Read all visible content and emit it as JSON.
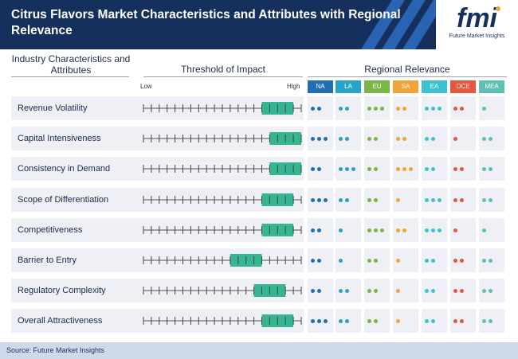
{
  "title": "Citrus Flavors Market Characteristics and Attributes with Regional Relevance",
  "logo": {
    "wordmark": "fmi",
    "tagline": "Future Market Insights"
  },
  "headers": {
    "characteristics": "Industry Characteristics and Attributes",
    "threshold": "Threshold of Impact",
    "regional": "Regional Relevance",
    "low": "Low",
    "high": "High"
  },
  "regions": [
    {
      "code": "NA",
      "color": "#1f6fb2"
    },
    {
      "code": "LA",
      "color": "#28a3c8"
    },
    {
      "code": "EU",
      "color": "#7ab648"
    },
    {
      "code": "SA",
      "color": "#f3a33b"
    },
    {
      "code": "EA",
      "color": "#3cc2d1"
    },
    {
      "code": "OCE",
      "color": "#e8553e"
    },
    {
      "code": "MEA",
      "color": "#5fc0b2"
    }
  ],
  "chart_data": {
    "type": "table",
    "threshold_scale": {
      "min": 0,
      "max": 20,
      "ticks": 21
    },
    "rows": [
      {
        "label": "Revenue Volatility",
        "impact": [
          15,
          19
        ],
        "relevance": [
          2,
          2,
          3,
          2,
          3,
          2,
          1
        ]
      },
      {
        "label": "Capital Intensiveness",
        "impact": [
          16,
          20
        ],
        "relevance": [
          3,
          2,
          2,
          2,
          2,
          1,
          2
        ]
      },
      {
        "label": "Consistency in Demand",
        "impact": [
          16,
          20
        ],
        "relevance": [
          2,
          3,
          2,
          3,
          2,
          2,
          2
        ]
      },
      {
        "label": "Scope of Differentiation",
        "impact": [
          15,
          19
        ],
        "relevance": [
          3,
          2,
          2,
          1,
          3,
          2,
          2
        ]
      },
      {
        "label": "Competitiveness",
        "impact": [
          15,
          19
        ],
        "relevance": [
          2,
          1,
          3,
          2,
          3,
          1,
          1
        ]
      },
      {
        "label": "Barrier to Entry",
        "impact": [
          11,
          15
        ],
        "relevance": [
          2,
          1,
          2,
          1,
          2,
          2,
          2
        ]
      },
      {
        "label": "Regulatory Complexity",
        "impact": [
          14,
          18
        ],
        "relevance": [
          2,
          2,
          2,
          1,
          2,
          2,
          2
        ]
      },
      {
        "label": "Overall Attractiveness",
        "impact": [
          15,
          19
        ],
        "relevance": [
          3,
          2,
          2,
          1,
          2,
          2,
          2
        ]
      }
    ]
  },
  "footer": {
    "source": "Source: Future Market Insights"
  }
}
